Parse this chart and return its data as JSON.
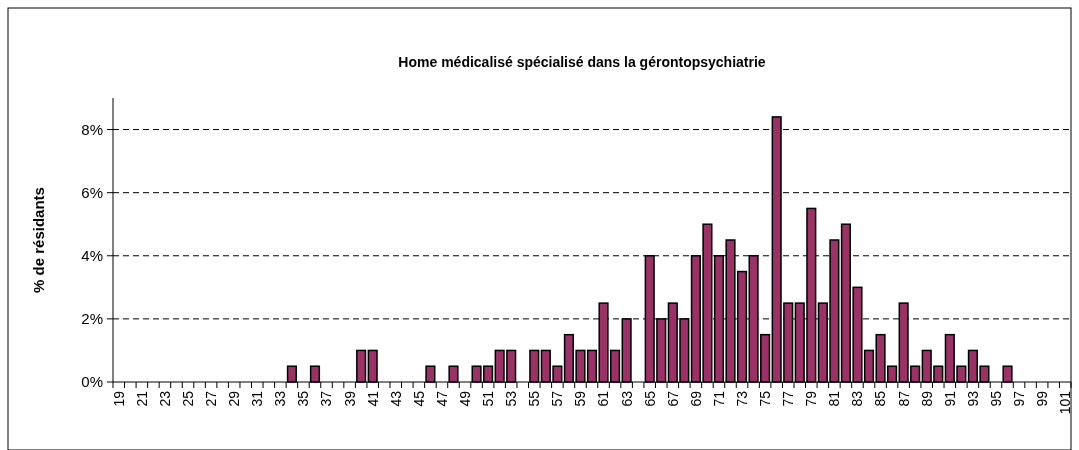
{
  "chart_data": {
    "type": "bar",
    "title": "Home médicalisé spécialisé dans la gérontopsychiatrie",
    "ylabel": "% de résidants",
    "categories": [
      "19",
      null,
      "21",
      null,
      "23",
      null,
      "25",
      null,
      "27",
      null,
      "29",
      null,
      "31",
      null,
      "33",
      null,
      "35",
      null,
      "37",
      null,
      "39",
      null,
      "41",
      null,
      "43",
      null,
      "45",
      null,
      "47",
      null,
      "49",
      null,
      "51",
      null,
      "53",
      null,
      "55",
      null,
      "57",
      null,
      "59",
      null,
      "61",
      null,
      "63",
      null,
      "65",
      null,
      "67",
      null,
      "69",
      null,
      "71",
      null,
      "73",
      null,
      "75",
      null,
      "77",
      null,
      "79",
      null,
      "81",
      null,
      "83",
      null,
      "85",
      null,
      "87",
      null,
      "89",
      null,
      "91",
      null,
      "93",
      null,
      "95",
      null,
      "97",
      null,
      "99",
      null,
      "101"
    ],
    "values": [
      0,
      0,
      0,
      0,
      0,
      0,
      0,
      0,
      0,
      0,
      0,
      0,
      0,
      0,
      0,
      0.5,
      0,
      0.5,
      0,
      0,
      0,
      1,
      1,
      0,
      0,
      0,
      0,
      0.5,
      0,
      0.5,
      0,
      0.5,
      0.5,
      1,
      1,
      0,
      1,
      1,
      0.5,
      1.5,
      1,
      1,
      2.5,
      1,
      2,
      0,
      4,
      2,
      2.5,
      2,
      4,
      5,
      4,
      4.5,
      3.5,
      4,
      1.5,
      8.4,
      2.5,
      2.5,
      5.5,
      2.5,
      4.5,
      5,
      3,
      1,
      1.5,
      0.5,
      2.5,
      0.5,
      1,
      0.5,
      1.5,
      0.5,
      1,
      0.5,
      0,
      0.5,
      0,
      0,
      0,
      0,
      0
    ],
    "color": "#993366",
    "ylim": [
      0,
      9
    ],
    "yticks": [
      {
        "value": 0,
        "label": "0%"
      },
      {
        "value": 2,
        "label": "2%"
      },
      {
        "value": 4,
        "label": "4%"
      },
      {
        "value": 6,
        "label": "6%"
      },
      {
        "value": 8,
        "label": "8%"
      }
    ],
    "grid": "y",
    "line_style": "dashed"
  }
}
